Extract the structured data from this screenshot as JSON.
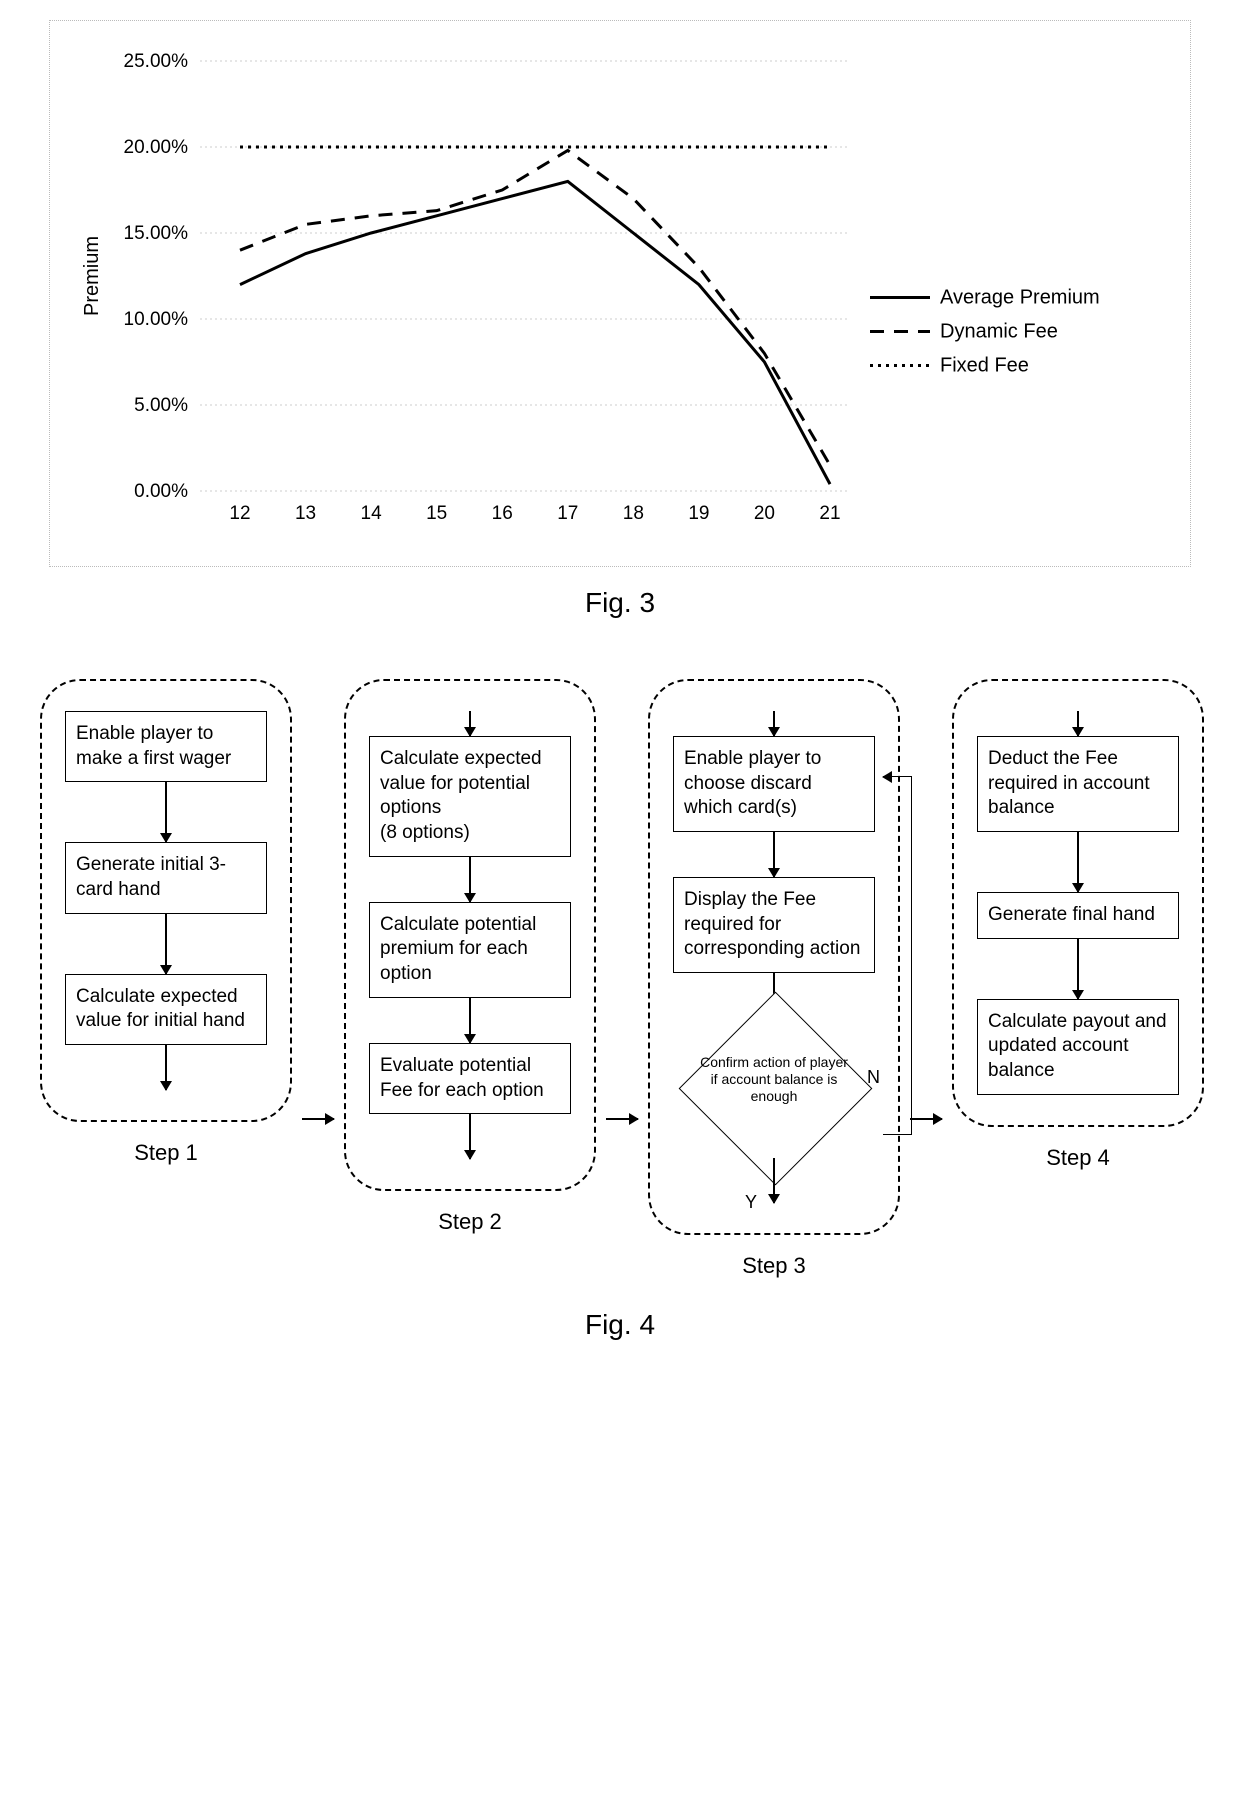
{
  "chart": {
    "type": "line",
    "ylabel": "Premium",
    "ylabel_fontsize": 20,
    "x_categories": [
      "12",
      "13",
      "14",
      "15",
      "16",
      "17",
      "18",
      "19",
      "20",
      "21"
    ],
    "ytick_labels": [
      "0.00%",
      "5.00%",
      "10.00%",
      "15.00%",
      "20.00%",
      "25.00%"
    ],
    "ylim": [
      0,
      25
    ],
    "tick_fontsize": 19,
    "grid_color": "#cccccc",
    "border_color": "#bbbbbb",
    "series": [
      {
        "name": "Average Premium",
        "style": "solid",
        "width": 3,
        "values": [
          12.0,
          13.8,
          15.0,
          16.0,
          17.0,
          18.0,
          15.0,
          12.0,
          7.5,
          0.4,
          0.0
        ]
      },
      {
        "name": "Dynamic Fee",
        "style": "dash",
        "width": 3,
        "values": [
          14.0,
          15.5,
          16.0,
          16.3,
          17.5,
          19.8,
          17.0,
          13.0,
          8.0,
          1.5,
          0.0
        ]
      },
      {
        "name": "Fixed Fee",
        "style": "dot",
        "width": 3,
        "values": [
          20.0,
          20.0,
          20.0,
          20.0,
          20.0,
          20.0,
          20.0,
          20.0,
          20.0,
          20.0,
          20.0
        ]
      }
    ],
    "legend": {
      "position": "right",
      "fontsize": 20
    }
  },
  "fig3_caption": "Fig. 3",
  "fig4_caption": "Fig. 4",
  "flow": {
    "steps": [
      {
        "label": "Step 1",
        "boxes": [
          "Enable player to make a first wager",
          "Generate initial 3-card hand",
          "Calculate expected value for initial hand"
        ]
      },
      {
        "label": "Step 2",
        "boxes": [
          "Calculate expected value for potential options\n(8 options)",
          "Calculate potential premium for each option",
          "Evaluate potential Fee for each option"
        ]
      },
      {
        "label": "Step 3",
        "boxes": [
          "Enable player to choose discard which card(s)",
          "Display the Fee required for corresponding action"
        ],
        "diamond": "Confirm action of player if account balance is enough",
        "yes": "Y",
        "no": "N"
      },
      {
        "label": "Step 4",
        "boxes": [
          "Deduct the Fee required in account balance",
          "Generate final hand",
          "Calculate payout and updated account balance"
        ]
      }
    ]
  }
}
